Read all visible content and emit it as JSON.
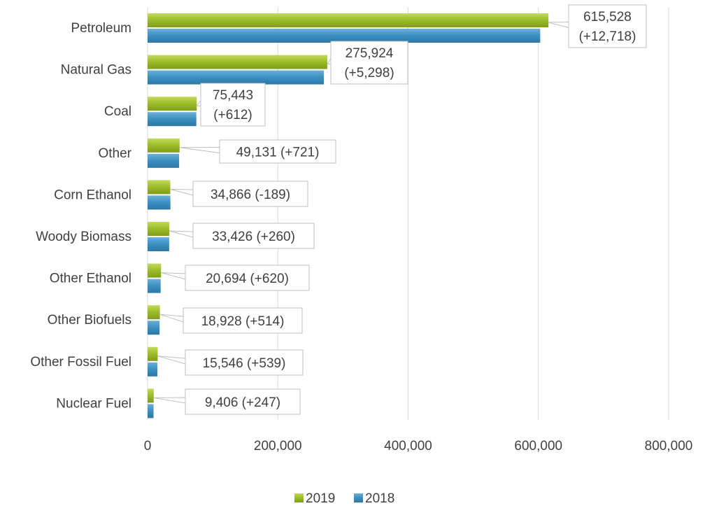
{
  "chart_data": {
    "type": "bar",
    "orientation": "horizontal",
    "categories": [
      "Petroleum",
      "Natural Gas",
      "Coal",
      "Other",
      "Corn Ethanol",
      "Woody Biomass",
      "Other Ethanol",
      "Other Biofuels",
      "Other Fossil Fuel",
      "Nuclear Fuel"
    ],
    "series": [
      {
        "name": "2019",
        "color": "#9BBB29",
        "values": [
          615528,
          275924,
          75443,
          49131,
          34866,
          33426,
          20694,
          18928,
          15546,
          9406
        ]
      },
      {
        "name": "2018",
        "color": "#3A8FC1",
        "values": [
          602810,
          270626,
          74831,
          48410,
          35055,
          33166,
          20074,
          18414,
          15007,
          9159
        ]
      }
    ],
    "annotations": [
      {
        "lines": [
          "615,528",
          "(+12,718)"
        ]
      },
      {
        "lines": [
          "275,924",
          "(+5,298)"
        ]
      },
      {
        "lines": [
          "75,443",
          "(+612)"
        ]
      },
      {
        "lines": [
          "49,131  (+721)"
        ]
      },
      {
        "lines": [
          "34,866 (-189)"
        ]
      },
      {
        "lines": [
          "33,426 (+260)"
        ]
      },
      {
        "lines": [
          "20,694 (+620)"
        ]
      },
      {
        "lines": [
          "18,928  (+514)"
        ]
      },
      {
        "lines": [
          "15,546 (+539)"
        ]
      },
      {
        "lines": [
          "9,406 (+247)"
        ]
      }
    ],
    "xlim": [
      0,
      800000
    ],
    "xticks": [
      0,
      200000,
      400000,
      600000,
      800000
    ],
    "xtick_labels": [
      "0",
      "200,000",
      "400,000",
      "600,000",
      "800,000"
    ],
    "grid": "vertical",
    "legend": {
      "position": "bottom",
      "entries": [
        "2019",
        "2018"
      ]
    }
  }
}
